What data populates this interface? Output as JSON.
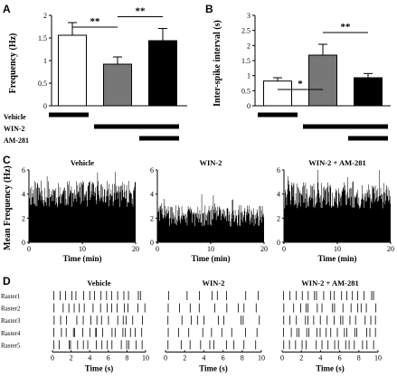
{
  "panels": {
    "A": "A",
    "B": "B",
    "C": "C",
    "D": "D"
  },
  "chart_data": [
    {
      "id": "A",
      "type": "bar",
      "categories": [
        "Vehicle",
        "WIN-2",
        "WIN-2 + AM-281"
      ],
      "values": [
        1.56,
        0.92,
        1.44
      ],
      "errors": [
        0.28,
        0.16,
        0.27
      ],
      "colors": [
        "#ffffff",
        "#777777",
        "#000000"
      ],
      "ylabel": "Frequency (Hz)",
      "ylim": [
        0,
        2
      ],
      "yticks": [
        "0",
        "0.5",
        "1",
        "1.5",
        "2"
      ],
      "ytick_values": [
        0,
        0.5,
        1,
        1.5,
        2
      ],
      "significance": [
        {
          "from": 0,
          "to": 1,
          "label": "**"
        },
        {
          "from": 1,
          "to": 2,
          "label": "**"
        }
      ]
    },
    {
      "id": "B",
      "type": "bar",
      "categories": [
        "Vehicle",
        "WIN-2",
        "WIN-2 + AM-281"
      ],
      "values": [
        0.82,
        1.68,
        0.93
      ],
      "errors": [
        0.11,
        0.36,
        0.14
      ],
      "colors": [
        "#ffffff",
        "#777777",
        "#000000"
      ],
      "ylabel": "Inter-spike interval (s)",
      "ylim": [
        0,
        3
      ],
      "yticks": [
        "0",
        "0.5",
        "1",
        "1.5",
        "2",
        "2.5",
        "3"
      ],
      "ytick_values": [
        0,
        0.5,
        1,
        1.5,
        2,
        2.5,
        3
      ],
      "significance": [
        {
          "from": 0,
          "to": 1,
          "label": "*"
        },
        {
          "from": 1,
          "to": 2,
          "label": "**"
        }
      ]
    },
    {
      "id": "C",
      "type": "area",
      "ylabel": "Mean Frequency (Hz)",
      "xlabel": "Time (min)",
      "xlim": [
        0,
        20
      ],
      "ylim": [
        0,
        6
      ],
      "xticks": [
        "0",
        "10",
        "20"
      ],
      "xtick_values": [
        0,
        10,
        20
      ],
      "yticks": [
        "0",
        "2",
        "4",
        "6"
      ],
      "ytick_values": [
        0,
        2,
        4,
        6
      ],
      "series": [
        {
          "name": "Vehicle",
          "mean": 4.0,
          "variability": 1.1
        },
        {
          "name": "WIN-2",
          "mean": 2.2,
          "variability": 0.9
        },
        {
          "name": "WIN-2 + AM-281",
          "mean": 3.9,
          "variability": 1.1
        }
      ]
    },
    {
      "id": "D",
      "type": "raster",
      "xlabel": "Time (s)",
      "xlim": [
        0,
        10
      ],
      "xticks": [
        "0",
        "2",
        "4",
        "6",
        "8",
        "10"
      ],
      "xtick_values": [
        0,
        2,
        4,
        6,
        8,
        10
      ],
      "rows": [
        "Raster1",
        "Raster2",
        "Raster3",
        "Raster4",
        "Raster5"
      ],
      "series": [
        {
          "name": "Vehicle",
          "spike_counts": [
            16,
            15,
            14,
            17,
            16
          ]
        },
        {
          "name": "WIN-2",
          "spike_counts": [
            8,
            9,
            10,
            9,
            10
          ]
        },
        {
          "name": "WIN-2 + AM-281",
          "spike_counts": [
            17,
            15,
            16,
            18,
            16
          ]
        }
      ]
    }
  ],
  "treatment_legend": {
    "labels": [
      "Vehicle",
      "WIN-2",
      "AM-281"
    ],
    "bars": [
      {
        "label": "Vehicle",
        "from": 0,
        "to": 0
      },
      {
        "label": "WIN-2",
        "from": 1,
        "to": 2
      },
      {
        "label": "AM-281",
        "from": 2,
        "to": 2
      }
    ]
  }
}
